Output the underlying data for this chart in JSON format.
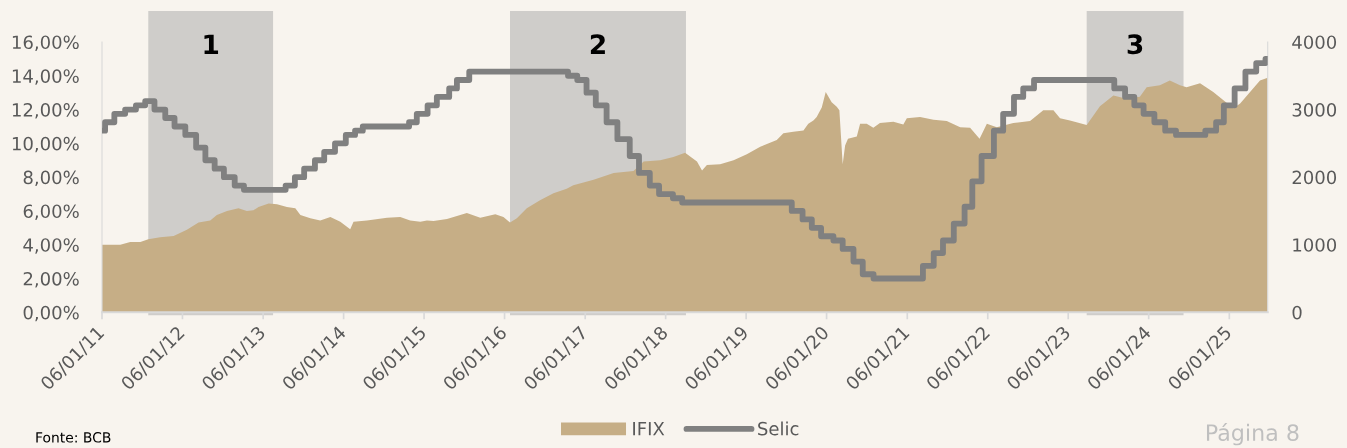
{
  "chart_data": {
    "type": "area",
    "series": [
      {
        "name": "IFIX",
        "axis": "y2",
        "color": "#c6ae86",
        "x": [
          "2011-01-06",
          "2011-03-30",
          "2011-05-14",
          "2011-06-29",
          "2011-08-04",
          "2011-09-27",
          "2011-11-27",
          "2012-01-26",
          "2012-03-19",
          "2012-05-11",
          "2012-06-10",
          "2012-07-26",
          "2012-09-16",
          "2012-10-24",
          "2012-11-23",
          "2012-12-16",
          "2013-01-31",
          "2013-03-10",
          "2013-04-24",
          "2013-06-01",
          "2013-06-24",
          "2013-08-08",
          "2013-09-22",
          "2013-11-07",
          "2013-12-22",
          "2014-02-05",
          "2014-02-20",
          "2014-04-22",
          "2014-07-22",
          "2014-09-20",
          "2014-11-04",
          "2014-12-20",
          "2015-01-19",
          "2015-02-18",
          "2015-04-20",
          "2015-07-19",
          "2015-09-18",
          "2015-11-25",
          "2016-01-01",
          "2016-01-31",
          "2016-03-02",
          "2016-04-16",
          "2016-06-15",
          "2016-08-15",
          "2016-10-14",
          "2016-11-13",
          "2017-02-13",
          "2017-05-15",
          "2017-08-13",
          "2017-09-28",
          "2017-12-12",
          "2018-02-10",
          "2018-04-04",
          "2018-05-28",
          "2018-06-20",
          "2018-07-12",
          "2018-09-10",
          "2018-11-10",
          "2019-01-09",
          "2019-03-11",
          "2019-05-25",
          "2019-06-24",
          "2019-08-08",
          "2019-09-23",
          "2019-10-15",
          "2019-11-07",
          "2019-11-22",
          "2019-12-15",
          "2020-01-02",
          "2020-01-29",
          "2020-02-21",
          "2020-03-04",
          "2020-03-19",
          "2020-03-30",
          "2020-04-12",
          "2020-05-22",
          "2020-06-06",
          "2020-07-06",
          "2020-08-05",
          "2020-09-04",
          "2020-11-04",
          "2020-12-19",
          "2021-01-04",
          "2021-03-05",
          "2021-05-05",
          "2021-07-04",
          "2021-09-03",
          "2021-10-18",
          "2021-11-30",
          "2022-01-02",
          "2022-02-16",
          "2022-05-02",
          "2022-07-17",
          "2022-09-15",
          "2022-10-31",
          "2022-11-30",
          "2023-01-14",
          "2023-03-31",
          "2023-05-30",
          "2023-07-30",
          "2023-09-28",
          "2023-11-27",
          "2023-12-28",
          "2024-02-26",
          "2024-04-11",
          "2024-05-27",
          "2024-06-26",
          "2024-08-26",
          "2024-10-25",
          "2024-12-09",
          "2025-01-24",
          "2025-02-24",
          "2025-04-10",
          "2025-05-25",
          "2025-06-29"
        ],
        "values": [
          1000,
          1000,
          1040,
          1040,
          1080,
          1110,
          1130,
          1220,
          1330,
          1360,
          1440,
          1500,
          1540,
          1500,
          1510,
          1560,
          1610,
          1600,
          1560,
          1540,
          1440,
          1390,
          1360,
          1410,
          1340,
          1230,
          1340,
          1360,
          1400,
          1410,
          1360,
          1340,
          1360,
          1350,
          1380,
          1470,
          1400,
          1450,
          1410,
          1330,
          1390,
          1540,
          1660,
          1760,
          1830,
          1880,
          1960,
          2060,
          2090,
          2230,
          2250,
          2300,
          2360,
          2230,
          2100,
          2180,
          2190,
          2250,
          2340,
          2450,
          2550,
          2650,
          2670,
          2690,
          2790,
          2840,
          2890,
          3030,
          3260,
          3110,
          3040,
          2990,
          2190,
          2470,
          2570,
          2600,
          2790,
          2790,
          2730,
          2800,
          2820,
          2780,
          2870,
          2890,
          2850,
          2830,
          2740,
          2730,
          2570,
          2790,
          2740,
          2800,
          2830,
          2990,
          2990,
          2870,
          2840,
          2770,
          3050,
          3210,
          3160,
          3190,
          3330,
          3360,
          3430,
          3360,
          3330,
          3390,
          3260,
          3140,
          3020,
          3090,
          3260,
          3430,
          3470
        ]
      },
      {
        "name": "Selic",
        "type": "step",
        "color": "#808080",
        "x": [
          "2011-01-06",
          "2011-01-20",
          "2011-03-03",
          "2011-04-21",
          "2011-06-09",
          "2011-07-21",
          "2011-09-01",
          "2011-10-20",
          "2011-12-01",
          "2012-01-19",
          "2012-03-08",
          "2012-04-19",
          "2012-05-31",
          "2012-07-12",
          "2012-08-30",
          "2012-10-11",
          "2013-04-18",
          "2013-05-30",
          "2013-07-11",
          "2013-08-29",
          "2013-10-10",
          "2013-11-28",
          "2014-01-16",
          "2014-02-27",
          "2014-04-03",
          "2014-10-30",
          "2014-12-04",
          "2015-01-22",
          "2015-03-05",
          "2015-04-30",
          "2015-06-04",
          "2015-07-30",
          "2016-10-20",
          "2016-12-01",
          "2017-01-12",
          "2017-02-23",
          "2017-04-13",
          "2017-06-01",
          "2017-07-27",
          "2017-09-07",
          "2017-10-26",
          "2017-12-07",
          "2018-02-08",
          "2018-03-22",
          "2019-08-01",
          "2019-09-19",
          "2019-10-31",
          "2019-12-12",
          "2020-02-06",
          "2020-03-19",
          "2020-05-07",
          "2020-06-18",
          "2020-08-06",
          "2021-03-18",
          "2021-05-06",
          "2021-06-17",
          "2021-08-05",
          "2021-09-23",
          "2021-10-28",
          "2021-12-09",
          "2022-02-03",
          "2022-03-17",
          "2022-05-05",
          "2022-06-16",
          "2022-08-04",
          "2023-08-03",
          "2023-09-21",
          "2023-11-02",
          "2023-12-14",
          "2024-02-01",
          "2024-03-21",
          "2024-05-09",
          "2024-09-19",
          "2024-11-07",
          "2024-12-12",
          "2025-01-30",
          "2025-03-20",
          "2025-05-08",
          "2025-06-19",
          "2025-06-29"
        ],
        "values": [
          10.75,
          11.25,
          11.75,
          12.0,
          12.25,
          12.5,
          12.0,
          11.5,
          11.0,
          10.5,
          9.75,
          9.0,
          8.5,
          8.0,
          7.5,
          7.25,
          7.5,
          8.0,
          8.5,
          9.0,
          9.5,
          10.0,
          10.5,
          10.75,
          11.0,
          11.25,
          11.75,
          12.25,
          12.75,
          13.25,
          13.75,
          14.25,
          14.0,
          13.75,
          13.0,
          12.25,
          11.25,
          10.25,
          9.25,
          8.25,
          7.5,
          7.0,
          6.75,
          6.5,
          6.0,
          5.5,
          5.0,
          4.5,
          4.25,
          3.75,
          3.0,
          2.25,
          2.0,
          2.75,
          3.5,
          4.25,
          5.25,
          6.25,
          7.75,
          9.25,
          10.75,
          11.75,
          12.75,
          13.25,
          13.75,
          13.25,
          12.75,
          12.25,
          11.75,
          11.25,
          10.75,
          10.5,
          10.75,
          11.25,
          12.25,
          13.25,
          14.25,
          14.75,
          15.0,
          15.0
        ]
      }
    ],
    "xlim": [
      "2011-01-06",
      "2025-06-29"
    ],
    "xticks": [
      {
        "value": "2011-01-06",
        "label": "06/01/11"
      },
      {
        "value": "2012-01-06",
        "label": "06/01/12"
      },
      {
        "value": "2013-01-06",
        "label": "06/01/13"
      },
      {
        "value": "2014-01-06",
        "label": "06/01/14"
      },
      {
        "value": "2015-01-06",
        "label": "06/01/15"
      },
      {
        "value": "2016-01-06",
        "label": "06/01/16"
      },
      {
        "value": "2017-01-06",
        "label": "06/01/17"
      },
      {
        "value": "2018-01-06",
        "label": "06/01/18"
      },
      {
        "value": "2019-01-06",
        "label": "06/01/19"
      },
      {
        "value": "2020-01-06",
        "label": "06/01/20"
      },
      {
        "value": "2021-01-06",
        "label": "06/01/21"
      },
      {
        "value": "2022-01-06",
        "label": "06/01/22"
      },
      {
        "value": "2023-01-06",
        "label": "06/01/23"
      },
      {
        "value": "2024-01-06",
        "label": "06/01/24"
      },
      {
        "value": "2025-01-06",
        "label": "06/01/25"
      }
    ],
    "ylim": [
      0,
      16
    ],
    "yticks": [
      {
        "value": 0,
        "label": "0,00%"
      },
      {
        "value": 2,
        "label": "2,00%"
      },
      {
        "value": 4,
        "label": "4,00%"
      },
      {
        "value": 6,
        "label": "6,00%"
      },
      {
        "value": 8,
        "label": "8,00%"
      },
      {
        "value": 10,
        "label": "10,00%"
      },
      {
        "value": 12,
        "label": "12,00%"
      },
      {
        "value": 14,
        "label": "14,00%"
      },
      {
        "value": 16,
        "label": "16,00%"
      }
    ],
    "y2lim": [
      0,
      4000
    ],
    "y2ticks": [
      0,
      1000,
      2000,
      3000,
      4000
    ],
    "bands": [
      {
        "axis": "x",
        "from": "2011-08-04",
        "to": "2013-02-20",
        "label": "1",
        "color": "#a6a6a6"
      },
      {
        "axis": "x",
        "from": "2016-01-31",
        "to": "2018-04-08",
        "label": "2",
        "color": "#a6a6a6"
      },
      {
        "axis": "x",
        "from": "2023-03-31",
        "to": "2024-06-12",
        "label": "3",
        "color": "#a6a6a6"
      }
    ],
    "legend": "bottom",
    "annotations": [
      "Fonte: BCB",
      "Página 8"
    ]
  }
}
